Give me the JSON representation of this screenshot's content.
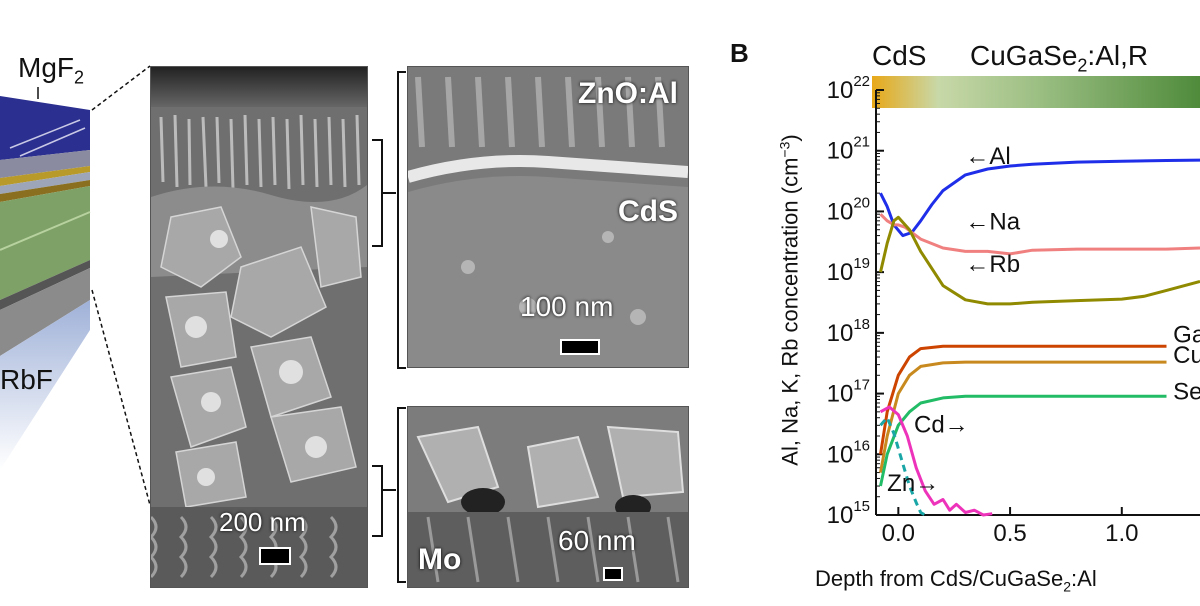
{
  "panel_a": {
    "layer_labels": [
      "MgF",
      "RbF"
    ],
    "mgf2_subscript": "2"
  },
  "sem_main": {
    "scale": "200 nm"
  },
  "sem_top": {
    "label1": "ZnO:Al",
    "label2": "CdS",
    "scale": "100 nm"
  },
  "sem_bottom": {
    "label": "Mo",
    "scale": "60 nm"
  },
  "panel_b": {
    "letter": "B",
    "region1": "CdS",
    "region2_pre": "CuGaSe",
    "region2_sub": "2",
    "region2_post": ":Al,R",
    "xlabel_pre": "Depth from CdS/CuGaSe",
    "xlabel_sub": "2",
    "xlabel_post": ":Al",
    "ylabel_pre": "Al, Na, K, Rb concentration (cm",
    "ylabel_sup": "−3",
    "ylabel_post": ")"
  },
  "chart_data": {
    "type": "line",
    "xlabel": "Depth from CdS/CuGaSe2:Al",
    "ylabel": "Al, Na, K, Rb concentration (cm−3)",
    "y_scale": "log",
    "xlim": [
      -0.1,
      1.35
    ],
    "ylim": [
      1000000000000000.0,
      1e+22
    ],
    "x_ticks": [
      {
        "value": 0.0,
        "label": "0.0"
      },
      {
        "value": 0.5,
        "label": "0.5"
      },
      {
        "value": 1.0,
        "label": "1.0"
      }
    ],
    "y_ticks": [
      {
        "value": 1000000000000000.0,
        "base": "10",
        "exp": "15"
      },
      {
        "value": 1e+16,
        "base": "10",
        "exp": "16"
      },
      {
        "value": 1e+17,
        "base": "10",
        "exp": "17"
      },
      {
        "value": 1e+18,
        "base": "10",
        "exp": "18"
      },
      {
        "value": 1e+19,
        "base": "10",
        "exp": "19"
      },
      {
        "value": 1e+20,
        "base": "10",
        "exp": "20"
      },
      {
        "value": 1e+21,
        "base": "10",
        "exp": "21"
      },
      {
        "value": 1e+22,
        "base": "10",
        "exp": "22"
      }
    ],
    "series": [
      {
        "id": "al",
        "color": "#1f2ee8",
        "dash": "",
        "x": [
          -0.08,
          -0.05,
          -0.02,
          0.02,
          0.06,
          0.1,
          0.15,
          0.2,
          0.3,
          0.4,
          0.5,
          0.6,
          0.8,
          1.0,
          1.2,
          1.35
        ],
        "y": [
          2e+20,
          1.2e+20,
          6e+19,
          4e+19,
          4.5e+19,
          7e+19,
          1.3e+20,
          2.2e+20,
          4e+20,
          5e+20,
          5.6e+20,
          6e+20,
          6.5e+20,
          6.7e+20,
          6.9e+20,
          7e+20
        ]
      },
      {
        "id": "na",
        "color": "#f08080",
        "dash": "",
        "x": [
          -0.08,
          -0.05,
          -0.02,
          0.0,
          0.03,
          0.06,
          0.1,
          0.2,
          0.3,
          0.4,
          0.5,
          0.6,
          0.8,
          1.0,
          1.2,
          1.35
        ],
        "y": [
          9e+19,
          7e+19,
          6e+19,
          6e+19,
          5.5e+19,
          4.5e+19,
          3.5e+19,
          2.5e+19,
          2.2e+19,
          2.2e+19,
          2e+19,
          2.3e+19,
          2.4e+19,
          2.4e+19,
          2.4e+19,
          2.5e+19
        ]
      },
      {
        "id": "rb",
        "color": "#8f8a00",
        "dash": "",
        "x": [
          -0.08,
          -0.05,
          -0.02,
          0.0,
          0.05,
          0.1,
          0.2,
          0.3,
          0.4,
          0.5,
          0.6,
          0.8,
          1.0,
          1.1,
          1.2,
          1.35
        ],
        "y": [
          1e+19,
          3e+19,
          7e+19,
          8e+19,
          5e+19,
          2.2e+19,
          6e+18,
          3.5e+18,
          3e+18,
          3e+18,
          3.2e+18,
          3.4e+18,
          3.6e+18,
          4e+18,
          5e+18,
          7e+18
        ]
      },
      {
        "id": "ga",
        "color": "#cc4400",
        "dash": "",
        "x": [
          -0.08,
          -0.05,
          0.0,
          0.05,
          0.1,
          0.2,
          0.3,
          0.5,
          0.8,
          1.0,
          1.2
        ],
        "y": [
          1e+16,
          5e+16,
          2e+17,
          4e+17,
          5.5e+17,
          6e+17,
          6e+17,
          6e+17,
          6e+17,
          6e+17,
          6e+17
        ]
      },
      {
        "id": "cu",
        "color": "#c88a1e",
        "dash": "",
        "x": [
          -0.08,
          -0.05,
          0.0,
          0.05,
          0.1,
          0.2,
          0.3,
          0.5,
          0.8,
          1.0,
          1.2
        ],
        "y": [
          5000000000000000.0,
          2e+16,
          1e+17,
          2e+17,
          2.8e+17,
          3.2e+17,
          3.3e+17,
          3.3e+17,
          3.3e+17,
          3.3e+17,
          3.3e+17
        ]
      },
      {
        "id": "se",
        "color": "#22bb66",
        "dash": "",
        "x": [
          -0.08,
          -0.05,
          0.0,
          0.05,
          0.1,
          0.2,
          0.3,
          0.5,
          0.8,
          1.0,
          1.2
        ],
        "y": [
          3000000000000000.0,
          1e+16,
          3e+16,
          5e+16,
          7e+16,
          8.5e+16,
          9e+16,
          9e+16,
          9e+16,
          9e+16,
          9e+16
        ]
      },
      {
        "id": "cd",
        "color": "#ee33bb",
        "dash": "",
        "x": [
          -0.08,
          -0.04,
          0.0,
          0.04,
          0.08,
          0.12,
          0.16,
          0.2,
          0.23,
          0.26,
          0.3,
          0.34,
          0.38,
          0.42
        ],
        "y": [
          5e+16,
          6e+16,
          4.5e+16,
          2e+16,
          6000000000000000.0,
          2500000000000000.0,
          1500000000000000.0,
          1800000000000000.0,
          1200000000000000.0,
          1500000000000000.0,
          1100000000000000.0,
          1200000000000000.0,
          1000000000000000.0,
          1050000000000000.0
        ]
      },
      {
        "id": "zn",
        "color": "#1aa6a6",
        "dash": "7,5",
        "x": [
          -0.08,
          -0.05,
          -0.02,
          0.02,
          0.05,
          0.08,
          0.1,
          0.12
        ],
        "y": [
          3e+16,
          4e+16,
          2.2e+16,
          7000000000000000.0,
          3000000000000000.0,
          1600000000000000.0,
          1100000000000000.0,
          1000000000000000.0
        ]
      }
    ],
    "annotations": [
      {
        "text": "←Al",
        "x": 0.3,
        "y": 6e+20
      },
      {
        "text": "←Na",
        "x": 0.3,
        "y": 5e+19
      },
      {
        "text": "←Rb",
        "x": 0.3,
        "y": 1e+19
      },
      {
        "text": "Cd→",
        "x": 0.07,
        "y": 2.3e+16
      },
      {
        "text": "Zn→",
        "x": -0.05,
        "y": 2500000000000000.0
      },
      {
        "text": "Ga",
        "x": 1.23,
        "y": 7e+17
      },
      {
        "text": "Cu",
        "x": 1.23,
        "y": 3.2e+17
      },
      {
        "text": "Se",
        "x": 1.23,
        "y": 8e+16
      }
    ],
    "top_bar": {
      "colors": [
        "#e8a818",
        "#c8d8a8",
        "#4e8a3a"
      ]
    }
  }
}
